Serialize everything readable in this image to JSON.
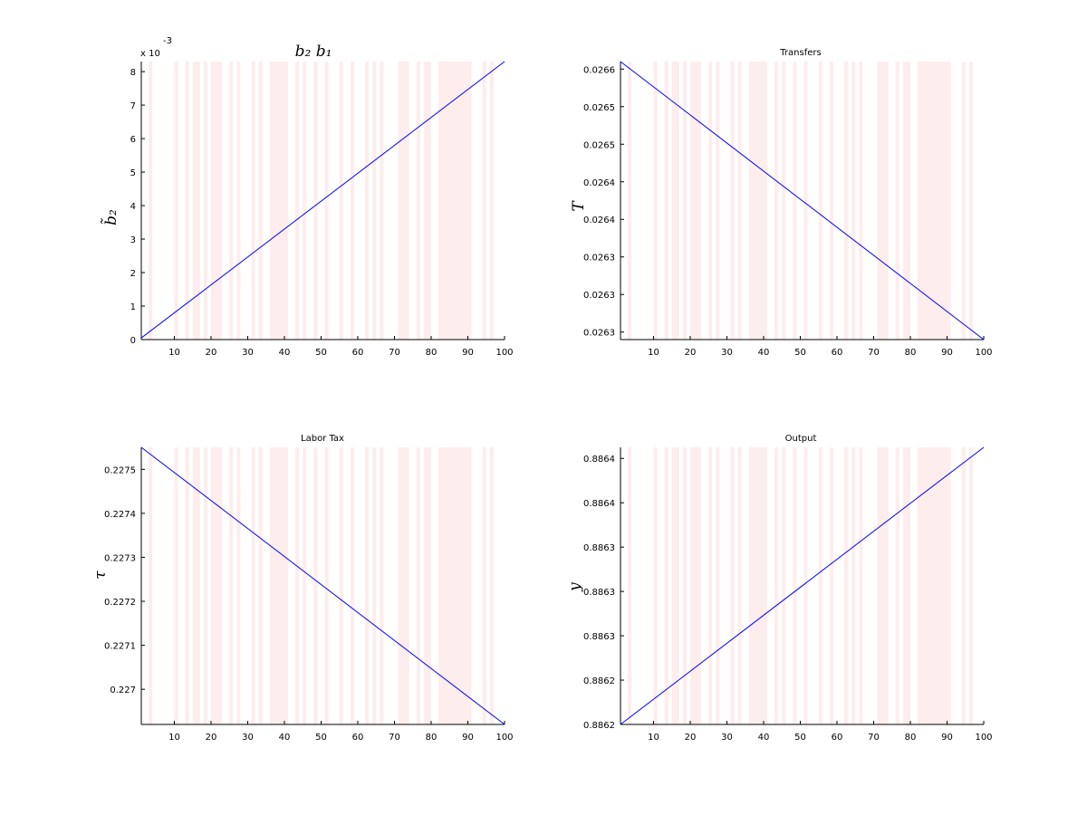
{
  "chart_data": [
    {
      "type": "line",
      "title": "b₂  b₁",
      "ylabel": "b̃₂",
      "exponent_label": "x 10",
      "exponent_power": "-3",
      "xlim": [
        1,
        100
      ],
      "ylim": [
        0,
        8.3
      ],
      "xticks": [
        10,
        20,
        30,
        40,
        50,
        60,
        70,
        80,
        90,
        100
      ],
      "yticks": [
        0,
        1,
        2,
        3,
        4,
        5,
        6,
        7,
        8
      ],
      "ytick_labels": [
        "0",
        "1",
        "2",
        "3",
        "4",
        "5",
        "6",
        "7",
        "8"
      ],
      "x": [
        1,
        100
      ],
      "y": [
        0.05,
        8.3
      ]
    },
    {
      "type": "line",
      "title": "Transfers",
      "ylabel": "T",
      "xlim": [
        1,
        100
      ],
      "ylim": [
        0.02626,
        0.02663
      ],
      "xticks": [
        10,
        20,
        30,
        40,
        50,
        60,
        70,
        80,
        90,
        100
      ],
      "yticks": [
        0.02627,
        0.02632,
        0.02637,
        0.02642,
        0.02647,
        0.02652,
        0.02657,
        0.02662
      ],
      "ytick_labels": [
        "0.0263",
        "0.0263",
        "0.0263",
        "0.0264",
        "0.0264",
        "0.0265",
        "0.0265",
        "0.0266"
      ],
      "x": [
        1,
        100
      ],
      "y": [
        0.02663,
        0.02626
      ]
    },
    {
      "type": "line",
      "title": "Labor Tax",
      "ylabel": "τ",
      "xlim": [
        1,
        100
      ],
      "ylim": [
        0.22692,
        0.22755
      ],
      "xticks": [
        10,
        20,
        30,
        40,
        50,
        60,
        70,
        80,
        90,
        100
      ],
      "yticks": [
        0.227,
        0.2271,
        0.2272,
        0.2273,
        0.2274,
        0.2275
      ],
      "ytick_labels": [
        "0.227",
        "0.2271",
        "0.2272",
        "0.2273",
        "0.2274",
        "0.2275"
      ],
      "x": [
        1,
        100
      ],
      "y": [
        0.22755,
        0.22692
      ]
    },
    {
      "type": "line",
      "title": "Output",
      "ylabel": "y",
      "xlim": [
        1,
        100
      ],
      "ylim": [
        0.88618,
        0.88643
      ],
      "xticks": [
        10,
        20,
        30,
        40,
        50,
        60,
        70,
        80,
        90,
        100
      ],
      "yticks": [
        0.88618,
        0.88622,
        0.88626,
        0.8863,
        0.88634,
        0.88638,
        0.88642
      ],
      "ytick_labels": [
        "0.8862",
        "0.8862",
        "0.8863",
        "0.8863",
        "0.8863",
        "0.8864",
        "0.8864"
      ],
      "x": [
        1,
        100
      ],
      "y": [
        0.88618,
        0.88643
      ]
    }
  ],
  "shading": {
    "color": "#fdeded",
    "intervals": [
      [
        3,
        4
      ],
      [
        10,
        11
      ],
      [
        13,
        14
      ],
      [
        15,
        17
      ],
      [
        18,
        19
      ],
      [
        20,
        23
      ],
      [
        25,
        26
      ],
      [
        27,
        28
      ],
      [
        31,
        32
      ],
      [
        33,
        34
      ],
      [
        36,
        41
      ],
      [
        43,
        44
      ],
      [
        45,
        46
      ],
      [
        48,
        49
      ],
      [
        51,
        52
      ],
      [
        55,
        56
      ],
      [
        58,
        59
      ],
      [
        62,
        63
      ],
      [
        64,
        65
      ],
      [
        66,
        67
      ],
      [
        71,
        74
      ],
      [
        76,
        77
      ],
      [
        78,
        80
      ],
      [
        82,
        91
      ],
      [
        94,
        95
      ],
      [
        96,
        97
      ]
    ]
  },
  "colors": {
    "series": "#0000ff",
    "axes": "#000000",
    "background": "#ffffff"
  }
}
